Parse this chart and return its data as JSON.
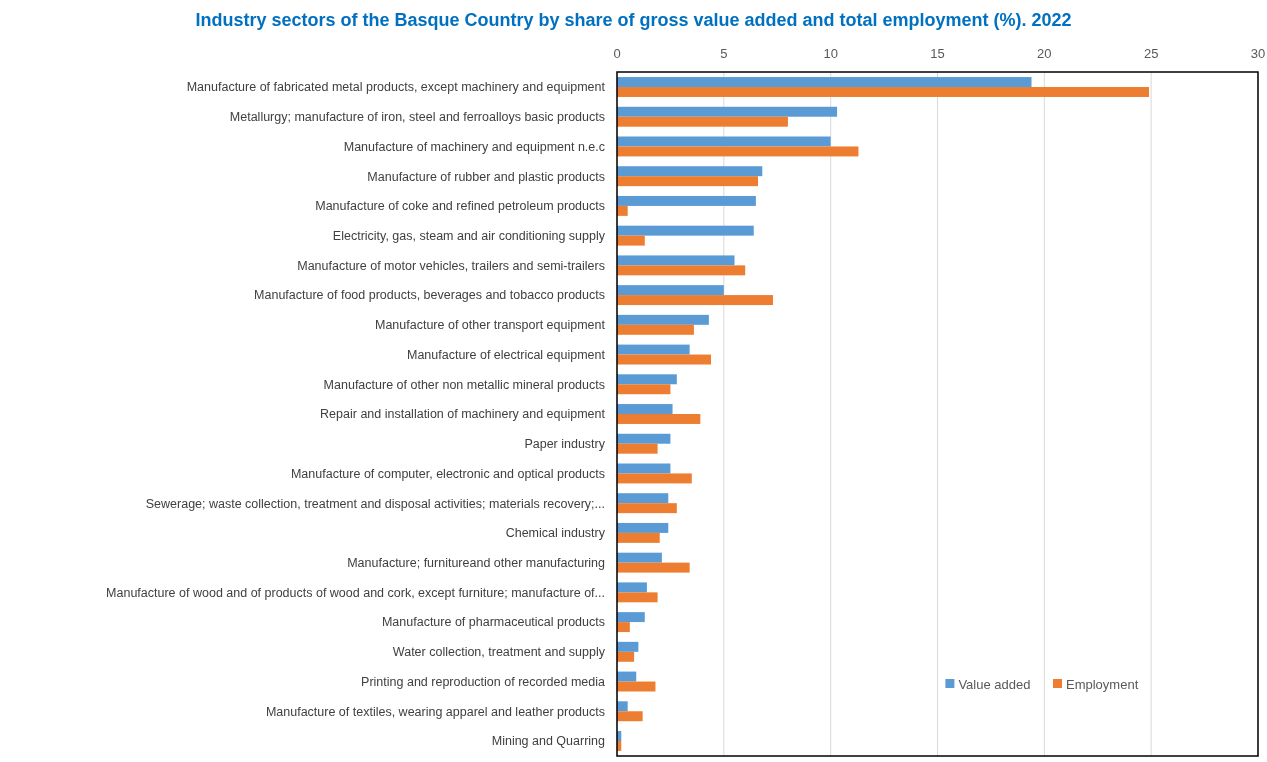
{
  "chart_data": {
    "type": "bar",
    "orientation": "horizontal",
    "title": "Industry sectors of the Basque Country by share of gross value added and total employment (%). 2022",
    "categories": [
      "Manufacture of fabricated metal products, except machinery and equipment",
      "Metallurgy; manufacture of iron, steel and ferroalloys basic products",
      "Manufacture of machinery and equipment n.e.c",
      "Manufacture of rubber and plastic products",
      "Manufacture of coke and refined petroleum products",
      "Electricity, gas, steam and air conditioning supply",
      "Manufacture of motor vehicles, trailers and semi-trailers",
      "Manufacture of food products, beverages and tobacco products",
      "Manufacture of other transport equipment",
      "Manufacture of electrical equipment",
      "Manufacture of other non metallic mineral products",
      "Repair and installation of machinery and equipment",
      "Paper industry",
      "Manufacture of computer, electronic and optical products",
      "Sewerage; waste collection, treatment and disposal activities; materials recovery;...",
      "Chemical industry",
      "Manufacture; furnitureand other manufacturing",
      "Manufacture of wood and of products of wood and cork, except furniture; manufacture of...",
      "Manufacture of pharmaceutical products",
      "Water collection, treatment and supply",
      "Printing and reproduction of recorded media",
      "Manufacture of textiles, wearing apparel and leather products",
      "Mining and Quarring"
    ],
    "series": [
      {
        "name": "Value added",
        "color": "#5b9bd5",
        "values": [
          19.4,
          10.3,
          10.0,
          6.8,
          6.5,
          6.4,
          5.5,
          5.0,
          4.3,
          3.4,
          2.8,
          2.6,
          2.5,
          2.5,
          2.4,
          2.4,
          2.1,
          1.4,
          1.3,
          1.0,
          0.9,
          0.5,
          0.2
        ]
      },
      {
        "name": "Employment",
        "color": "#ed7d31",
        "values": [
          24.9,
          8.0,
          11.3,
          6.6,
          0.5,
          1.3,
          6.0,
          7.3,
          3.6,
          4.4,
          2.5,
          3.9,
          1.9,
          3.5,
          2.8,
          2.0,
          3.4,
          1.9,
          0.6,
          0.8,
          1.8,
          1.2,
          0.2
        ]
      }
    ],
    "xlim": [
      0,
      30
    ],
    "xticks": [
      0,
      5,
      10,
      15,
      20,
      25,
      30
    ],
    "grid": "x",
    "legend": "bottom right"
  }
}
